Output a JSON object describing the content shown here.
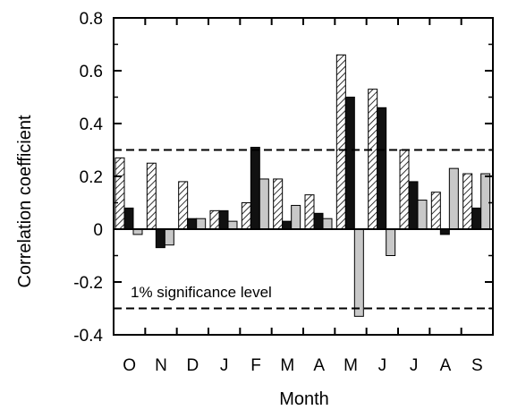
{
  "chart_data": {
    "type": "bar",
    "xlabel": "Month",
    "ylabel": "Correlation coefficient",
    "ylim": [
      -0.4,
      0.8
    ],
    "yticks": [
      -0.4,
      -0.2,
      0,
      0.2,
      0.4,
      0.6,
      0.8
    ],
    "ytick_labels": [
      "-0.4",
      "-0.2",
      "0",
      "0.2",
      "0.4",
      "0.6",
      "0.8"
    ],
    "categories": [
      "O",
      "N",
      "D",
      "J",
      "F",
      "M",
      "A",
      "M",
      "J",
      "J",
      "A",
      "S"
    ],
    "series": [
      {
        "values": [
          0.27,
          0.25,
          0.18,
          0.07,
          0.1,
          0.19,
          0.13,
          0.66,
          0.53,
          0.3,
          0.14,
          0.21
        ],
        "pattern": "hatched"
      },
      {
        "values": [
          0.08,
          -0.07,
          0.04,
          0.07,
          0.31,
          0.03,
          0.06,
          0.5,
          0.46,
          0.18,
          -0.02,
          0.08
        ],
        "pattern": "solid-black"
      },
      {
        "values": [
          -0.02,
          -0.06,
          0.04,
          0.03,
          0.19,
          0.09,
          0.04,
          -0.33,
          -0.1,
          0.11,
          0.23,
          0.21
        ],
        "pattern": "solid-gray"
      }
    ],
    "reference_lines": [
      0.3,
      -0.3
    ],
    "annotation": "1% significance level",
    "grid": false,
    "legend": "none",
    "colors": {
      "hatched_fill": "#ffffff",
      "hatch_line": "#000000",
      "black": "#111111",
      "gray": "#c8c8c8"
    }
  }
}
